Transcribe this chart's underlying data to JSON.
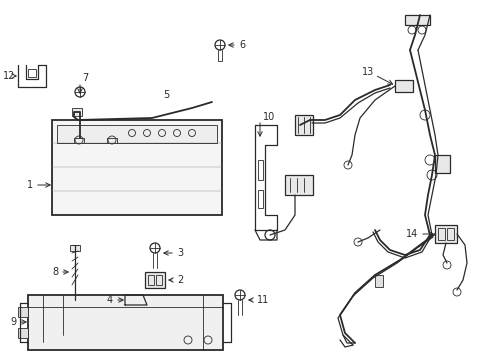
{
  "bg_color": "#ffffff",
  "line_color": "#2a2a2a",
  "figsize": [
    4.9,
    3.6
  ],
  "dpi": 100,
  "lw_thick": 1.3,
  "lw_med": 0.9,
  "lw_thin": 0.6,
  "font_size": 7.0
}
